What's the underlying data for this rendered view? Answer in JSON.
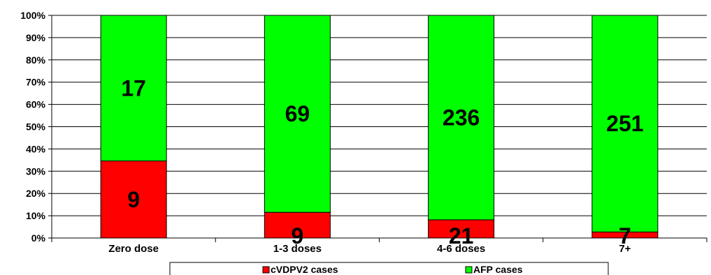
{
  "chart_data": {
    "type": "bar",
    "stacked": "percent",
    "categories": [
      "Zero dose",
      "1-3 doses",
      "4-6 doses",
      "7+"
    ],
    "series": [
      {
        "name": "cVDPV2 cases",
        "values": [
          9,
          9,
          21,
          7
        ],
        "color": "#ff0000"
      },
      {
        "name": "AFP cases",
        "values": [
          17,
          69,
          236,
          251
        ],
        "color": "#00ff00"
      }
    ],
    "yticks": [
      "0%",
      "10%",
      "20%",
      "30%",
      "40%",
      "50%",
      "60%",
      "70%",
      "80%",
      "90%",
      "100%"
    ],
    "ylim": [
      0,
      100
    ],
    "grid": true,
    "legend": "bottom"
  }
}
